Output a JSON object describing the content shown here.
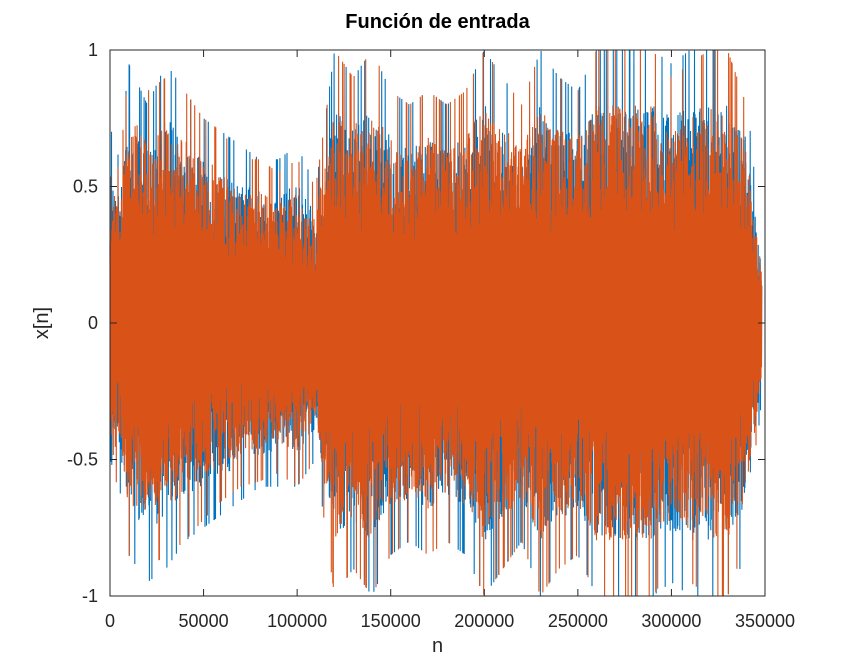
{
  "chart_data": {
    "type": "line",
    "title": "Función de entrada",
    "xlabel": "n",
    "ylabel": "x[n]",
    "xlim": [
      0,
      350000
    ],
    "ylim": [
      -1,
      1
    ],
    "xticks": [
      0,
      50000,
      100000,
      150000,
      200000,
      250000,
      300000,
      350000
    ],
    "xtick_labels": [
      "0",
      "50000",
      "100000",
      "150000",
      "200000",
      "250000",
      "300000",
      "350000"
    ],
    "yticks": [
      -1,
      -0.5,
      0,
      0.5,
      1
    ],
    "ytick_labels": [
      "-1",
      "-0.5",
      "0",
      "0.5",
      "1"
    ],
    "grid": false,
    "legend": "none",
    "series": [
      {
        "color": "#0072BD",
        "description_values": "audio waveform channel 1",
        "envelope": {
          "x": [
            0,
            5000,
            10000,
            20000,
            30000,
            40000,
            50000,
            60000,
            70000,
            80000,
            90000,
            100000,
            110000,
            120000,
            130000,
            140000,
            150000,
            160000,
            170000,
            180000,
            190000,
            200000,
            210000,
            220000,
            230000,
            240000,
            250000,
            260000,
            270000,
            280000,
            290000,
            300000,
            310000,
            320000,
            330000,
            340000,
            350000
          ],
          "upper": [
            0.72,
            0.6,
            0.95,
            0.8,
            0.95,
            0.85,
            0.75,
            0.7,
            0.65,
            0.6,
            0.6,
            0.65,
            0.5,
            1.0,
            0.9,
            1.0,
            0.85,
            0.8,
            0.85,
            0.8,
            0.85,
            1.0,
            0.9,
            0.8,
            1.0,
            0.9,
            0.85,
            1.0,
            1.0,
            1.0,
            1.0,
            0.95,
            1.0,
            1.0,
            1.0,
            0.85,
            0.15
          ],
          "lower": [
            -0.7,
            -0.6,
            -0.85,
            -0.95,
            -0.9,
            -0.8,
            -0.75,
            -0.7,
            -0.65,
            -0.6,
            -0.6,
            -0.6,
            -0.5,
            -1.0,
            -0.9,
            -1.0,
            -0.85,
            -0.8,
            -0.85,
            -0.8,
            -0.85,
            -1.0,
            -0.9,
            -0.8,
            -1.0,
            -0.9,
            -0.85,
            -1.0,
            -1.0,
            -1.0,
            -1.0,
            -0.95,
            -1.0,
            -1.0,
            -1.0,
            -0.85,
            -0.15
          ]
        }
      },
      {
        "color": "#D95319",
        "description_values": "audio waveform channel 2",
        "envelope": {
          "x": [
            0,
            5000,
            10000,
            20000,
            30000,
            40000,
            50000,
            60000,
            70000,
            80000,
            90000,
            100000,
            110000,
            120000,
            130000,
            140000,
            150000,
            160000,
            170000,
            180000,
            190000,
            200000,
            210000,
            220000,
            230000,
            240000,
            250000,
            260000,
            270000,
            280000,
            290000,
            300000,
            310000,
            320000,
            330000,
            340000,
            350000
          ],
          "upper": [
            0.7,
            0.55,
            0.95,
            0.85,
            0.9,
            0.85,
            0.75,
            0.7,
            0.6,
            0.6,
            0.55,
            0.6,
            0.5,
            1.0,
            0.9,
            1.0,
            0.85,
            0.8,
            0.85,
            0.8,
            0.85,
            1.0,
            0.9,
            0.8,
            1.0,
            0.9,
            0.85,
            1.0,
            1.0,
            1.0,
            1.0,
            0.9,
            0.95,
            1.0,
            1.0,
            0.8,
            0.12
          ],
          "lower": [
            -0.65,
            -0.55,
            -0.85,
            -0.9,
            -0.85,
            -0.8,
            -0.72,
            -0.65,
            -0.6,
            -0.58,
            -0.55,
            -0.6,
            -0.5,
            -1.0,
            -0.9,
            -1.0,
            -0.85,
            -0.8,
            -0.85,
            -0.8,
            -0.85,
            -1.0,
            -0.9,
            -0.8,
            -1.0,
            -0.9,
            -0.85,
            -1.0,
            -1.0,
            -1.0,
            -1.0,
            -0.9,
            -0.95,
            -1.0,
            -1.0,
            -0.8,
            -0.12
          ]
        }
      }
    ]
  }
}
